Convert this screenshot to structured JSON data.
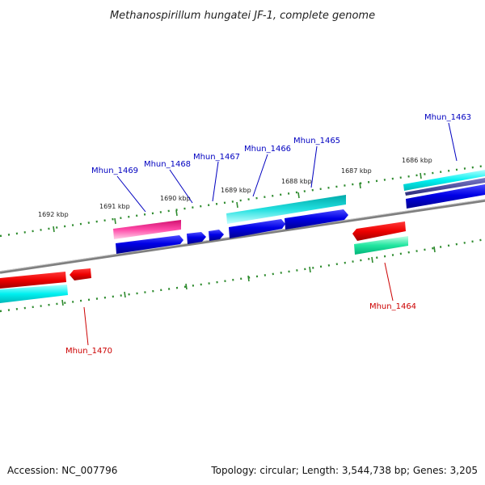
{
  "title": "Methanospirillum hungatei JF-1, complete genome",
  "footer": {
    "accession": "Accession: NC_007796",
    "summary": "Topology: circular; Length: 3,544,738 bp; Genes: 3,205"
  },
  "colors": {
    "forward_label": "#0000c0",
    "reverse_label": "#cc0000",
    "tick": "#2e8b2e",
    "backbone": "#7a7a7a"
  },
  "ruler_labels": [
    "1692 kbp",
    "1691 kbp",
    "1690 kbp",
    "1689 kbp",
    "1688 kbp",
    "1687 kbp",
    "1686 kbp"
  ],
  "gene_labels": [
    {
      "text": "Mhun_1469",
      "strand": "forward"
    },
    {
      "text": "Mhun_1468",
      "strand": "forward"
    },
    {
      "text": "Mhun_1467",
      "strand": "forward"
    },
    {
      "text": "Mhun_1466",
      "strand": "forward"
    },
    {
      "text": "Mhun_1465",
      "strand": "forward"
    },
    {
      "text": "Mhun_1463",
      "strand": "forward"
    },
    {
      "text": "Mhun_1464",
      "strand": "reverse"
    },
    {
      "text": "Mhun_1470",
      "strand": "reverse"
    }
  ]
}
